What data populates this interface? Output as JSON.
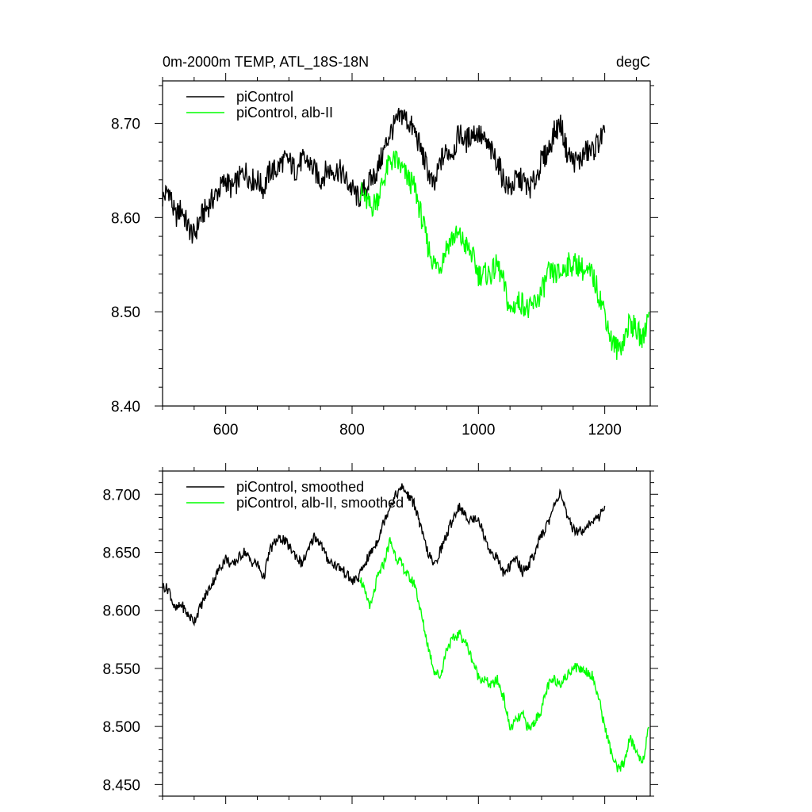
{
  "chart_data": [
    {
      "type": "line",
      "title_left": "0m-2000m TEMP, ATL_18S-18N",
      "title_right": "degC",
      "xlabel": "",
      "ylabel": "",
      "xlim": [
        500,
        1272
      ],
      "ylim": [
        8.4,
        8.745
      ],
      "xticks": [
        600,
        800,
        1000,
        1200
      ],
      "xtick_labels": [
        "600",
        "800",
        "1000",
        "1200"
      ],
      "yticks": [
        8.4,
        8.5,
        8.6,
        8.7
      ],
      "ytick_labels": [
        "8.40",
        "8.50",
        "8.60",
        "8.70"
      ],
      "grid": false,
      "legend_position": "top-left",
      "series": [
        {
          "name": "piControl",
          "color": "#000000",
          "x": [
            500,
            510,
            520,
            530,
            540,
            550,
            560,
            570,
            580,
            590,
            600,
            610,
            620,
            630,
            640,
            650,
            660,
            670,
            680,
            690,
            700,
            710,
            720,
            730,
            740,
            750,
            760,
            770,
            780,
            790,
            800,
            810,
            820,
            830,
            840,
            850,
            860,
            870,
            880,
            890,
            900,
            910,
            920,
            930,
            940,
            950,
            960,
            970,
            980,
            990,
            1000,
            1010,
            1020,
            1030,
            1040,
            1050,
            1060,
            1070,
            1080,
            1090,
            1100,
            1110,
            1120,
            1130,
            1140,
            1150,
            1160,
            1170,
            1180,
            1190,
            1200
          ],
          "values": [
            8.62,
            8.63,
            8.6,
            8.61,
            8.59,
            8.58,
            8.6,
            8.61,
            8.62,
            8.63,
            8.64,
            8.63,
            8.64,
            8.65,
            8.64,
            8.64,
            8.63,
            8.65,
            8.65,
            8.66,
            8.66,
            8.65,
            8.66,
            8.66,
            8.65,
            8.64,
            8.65,
            8.65,
            8.65,
            8.64,
            8.63,
            8.62,
            8.63,
            8.64,
            8.65,
            8.67,
            8.69,
            8.7,
            8.71,
            8.7,
            8.69,
            8.67,
            8.65,
            8.63,
            8.66,
            8.67,
            8.67,
            8.69,
            8.68,
            8.69,
            8.69,
            8.68,
            8.67,
            8.66,
            8.64,
            8.63,
            8.64,
            8.64,
            8.63,
            8.64,
            8.66,
            8.67,
            8.69,
            8.7,
            8.67,
            8.66,
            8.66,
            8.67,
            8.67,
            8.68,
            8.69
          ]
        },
        {
          "name": "piControl, alb-II",
          "color": "#00ff00",
          "x": [
            812,
            820,
            830,
            840,
            850,
            860,
            870,
            880,
            890,
            900,
            910,
            920,
            930,
            940,
            950,
            960,
            970,
            980,
            990,
            1000,
            1010,
            1020,
            1030,
            1040,
            1050,
            1060,
            1070,
            1080,
            1090,
            1100,
            1110,
            1120,
            1130,
            1140,
            1150,
            1160,
            1170,
            1180,
            1190,
            1200,
            1210,
            1220,
            1230,
            1240,
            1250,
            1260,
            1270
          ],
          "values": [
            8.63,
            8.62,
            8.61,
            8.62,
            8.64,
            8.66,
            8.66,
            8.65,
            8.64,
            8.63,
            8.6,
            8.57,
            8.55,
            8.55,
            8.57,
            8.58,
            8.58,
            8.57,
            8.56,
            8.54,
            8.54,
            8.54,
            8.55,
            8.53,
            8.5,
            8.51,
            8.51,
            8.5,
            8.51,
            8.52,
            8.54,
            8.54,
            8.54,
            8.55,
            8.55,
            8.55,
            8.54,
            8.54,
            8.52,
            8.5,
            8.47,
            8.46,
            8.47,
            8.49,
            8.48,
            8.47,
            8.5
          ]
        }
      ]
    },
    {
      "type": "line",
      "title_left": "",
      "title_right": "",
      "xlabel": "",
      "ylabel": "",
      "xlim": [
        500,
        1272
      ],
      "ylim": [
        8.44,
        8.72
      ],
      "xticks": [
        600,
        800,
        1000,
        1200
      ],
      "xtick_labels": [],
      "yticks": [
        8.45,
        8.5,
        8.55,
        8.6,
        8.65,
        8.7
      ],
      "ytick_labels": [
        "8.450",
        "8.500",
        "8.550",
        "8.600",
        "8.650",
        "8.700"
      ],
      "grid": false,
      "legend_position": "top-left",
      "series": [
        {
          "name": "piControl, smoothed",
          "color": "#000000",
          "x": [
            500,
            510,
            520,
            530,
            540,
            550,
            560,
            570,
            580,
            590,
            600,
            610,
            620,
            630,
            640,
            650,
            660,
            670,
            680,
            690,
            700,
            710,
            720,
            730,
            740,
            750,
            760,
            770,
            780,
            790,
            800,
            810,
            820,
            830,
            840,
            850,
            860,
            870,
            880,
            890,
            900,
            910,
            920,
            930,
            940,
            950,
            960,
            970,
            980,
            990,
            1000,
            1010,
            1020,
            1030,
            1040,
            1050,
            1060,
            1070,
            1080,
            1090,
            1100,
            1110,
            1120,
            1130,
            1140,
            1150,
            1160,
            1170,
            1180,
            1190,
            1200
          ],
          "values": [
            8.621,
            8.618,
            8.6,
            8.605,
            8.596,
            8.591,
            8.603,
            8.615,
            8.625,
            8.636,
            8.645,
            8.638,
            8.645,
            8.651,
            8.642,
            8.64,
            8.628,
            8.652,
            8.66,
            8.662,
            8.655,
            8.648,
            8.64,
            8.65,
            8.664,
            8.658,
            8.645,
            8.64,
            8.637,
            8.632,
            8.625,
            8.628,
            8.64,
            8.65,
            8.66,
            8.676,
            8.69,
            8.7,
            8.706,
            8.698,
            8.69,
            8.668,
            8.65,
            8.638,
            8.652,
            8.665,
            8.68,
            8.69,
            8.68,
            8.678,
            8.68,
            8.662,
            8.65,
            8.645,
            8.632,
            8.638,
            8.645,
            8.633,
            8.64,
            8.65,
            8.665,
            8.675,
            8.69,
            8.703,
            8.68,
            8.67,
            8.668,
            8.672,
            8.676,
            8.68,
            8.69
          ]
        },
        {
          "name": "piControl, alb-II, smoothed",
          "color": "#00ff00",
          "x": [
            812,
            820,
            830,
            840,
            850,
            860,
            870,
            880,
            890,
            900,
            910,
            920,
            930,
            940,
            950,
            960,
            970,
            980,
            990,
            1000,
            1010,
            1020,
            1030,
            1040,
            1050,
            1060,
            1070,
            1080,
            1090,
            1100,
            1110,
            1120,
            1130,
            1140,
            1150,
            1160,
            1170,
            1180,
            1190,
            1200,
            1210,
            1220,
            1230,
            1240,
            1250,
            1260,
            1270
          ],
          "values": [
            8.63,
            8.615,
            8.603,
            8.628,
            8.64,
            8.66,
            8.646,
            8.638,
            8.628,
            8.622,
            8.595,
            8.57,
            8.548,
            8.543,
            8.568,
            8.575,
            8.58,
            8.572,
            8.558,
            8.543,
            8.54,
            8.535,
            8.54,
            8.525,
            8.498,
            8.505,
            8.51,
            8.497,
            8.505,
            8.515,
            8.535,
            8.54,
            8.538,
            8.543,
            8.552,
            8.55,
            8.548,
            8.544,
            8.525,
            8.5,
            8.478,
            8.462,
            8.468,
            8.49,
            8.478,
            8.47,
            8.499
          ]
        }
      ]
    }
  ]
}
